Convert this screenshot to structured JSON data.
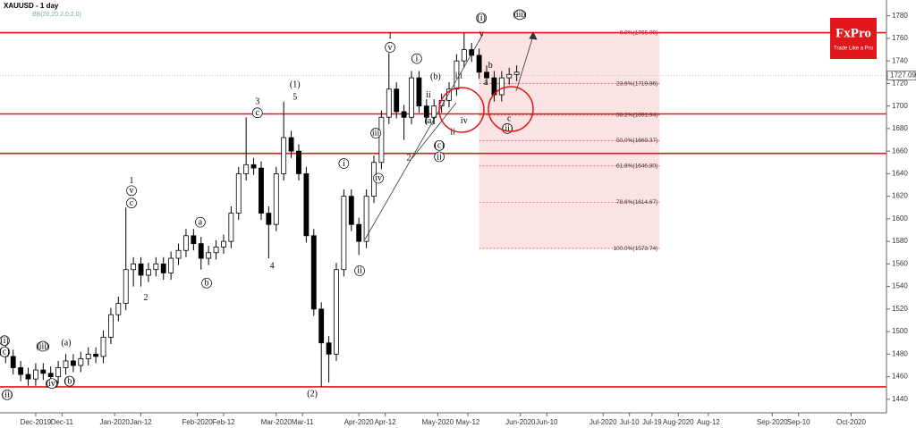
{
  "chart_data": {
    "type": "candlestick",
    "title": "XAUUSD - 1 day",
    "subtitle": "BB(20,20,2,0,2,0)",
    "x": [
      -8,
      -6,
      -4,
      -2,
      0,
      2,
      4,
      6,
      8,
      10,
      12,
      14,
      16,
      18,
      20,
      22,
      24,
      26,
      28,
      30,
      32,
      34,
      36,
      38,
      40,
      42,
      44,
      46,
      48,
      50,
      52,
      54,
      56,
      58,
      60,
      62,
      64,
      66,
      68,
      70,
      72,
      74,
      76,
      78,
      80,
      82,
      84,
      86,
      88,
      90,
      92,
      94,
      96,
      98,
      100,
      102,
      104,
      106,
      108,
      110,
      112,
      114,
      116,
      118,
      120,
      122,
      124,
      126,
      128
    ],
    "open": [
      1485,
      1478,
      1468,
      1462,
      1458,
      1466,
      1463,
      1460,
      1468,
      1474,
      1470,
      1476,
      1480,
      1478,
      1495,
      1515,
      1525,
      1555,
      1560,
      1550,
      1555,
      1560,
      1552,
      1565,
      1572,
      1585,
      1578,
      1565,
      1570,
      1575,
      1580,
      1605,
      1640,
      1648,
      1645,
      1605,
      1595,
      1640,
      1672,
      1660,
      1640,
      1585,
      1520,
      1490,
      1480,
      1555,
      1620,
      1595,
      1580,
      1620,
      1650,
      1690,
      1715,
      1695,
      1690,
      1725,
      1700,
      1690,
      1700,
      1705,
      1715,
      1740,
      1750,
      1745,
      1730,
      1725,
      1710,
      1725,
      1728
    ],
    "high": [
      1491,
      1484,
      1474,
      1468,
      1472,
      1472,
      1469,
      1474,
      1480,
      1480,
      1482,
      1486,
      1486,
      1501,
      1521,
      1531,
      1610,
      1566,
      1566,
      1561,
      1566,
      1566,
      1571,
      1578,
      1591,
      1591,
      1584,
      1576,
      1581,
      1586,
      1611,
      1646,
      1690,
      1654,
      1651,
      1611,
      1646,
      1704,
      1678,
      1666,
      1646,
      1591,
      1526,
      1496,
      1561,
      1626,
      1626,
      1601,
      1626,
      1656,
      1696,
      1747,
      1721,
      1701,
      1731,
      1731,
      1706,
      1706,
      1711,
      1721,
      1746,
      1765,
      1756,
      1751,
      1736,
      1731,
      1731,
      1734,
      1736
    ],
    "low": [
      1472,
      1462,
      1456,
      1452,
      1452,
      1457,
      1454,
      1454,
      1462,
      1464,
      1464,
      1470,
      1472,
      1472,
      1489,
      1509,
      1519,
      1540,
      1540,
      1544,
      1549,
      1546,
      1546,
      1559,
      1566,
      1572,
      1555,
      1559,
      1564,
      1569,
      1574,
      1599,
      1634,
      1639,
      1599,
      1565,
      1589,
      1634,
      1654,
      1634,
      1579,
      1514,
      1451,
      1455,
      1474,
      1549,
      1589,
      1568,
      1574,
      1614,
      1644,
      1684,
      1689,
      1670,
      1684,
      1694,
      1684,
      1684,
      1694,
      1699,
      1709,
      1734,
      1739,
      1724,
      1719,
      1704,
      1704,
      1719,
      1722
    ],
    "close": [
      1478,
      1468,
      1462,
      1458,
      1466,
      1463,
      1460,
      1468,
      1474,
      1470,
      1476,
      1480,
      1478,
      1495,
      1515,
      1525,
      1555,
      1560,
      1550,
      1555,
      1560,
      1552,
      1565,
      1572,
      1585,
      1578,
      1565,
      1570,
      1575,
      1580,
      1605,
      1640,
      1648,
      1645,
      1605,
      1595,
      1640,
      1672,
      1660,
      1640,
      1585,
      1520,
      1490,
      1480,
      1555,
      1620,
      1595,
      1580,
      1620,
      1650,
      1690,
      1715,
      1695,
      1690,
      1725,
      1700,
      1690,
      1700,
      1705,
      1715,
      1740,
      1750,
      1745,
      1730,
      1725,
      1710,
      1725,
      1728,
      1730
    ],
    "xlim": [
      -9.5,
      226.4
    ],
    "ylim": [
      1428,
      1794
    ],
    "xticks": [
      {
        "value": 0,
        "label": "Dec-2019"
      },
      {
        "value": 7,
        "label": "Dec-11"
      },
      {
        "value": 21,
        "label": "Jan-2020"
      },
      {
        "value": 28,
        "label": "Jan-12"
      },
      {
        "value": 43,
        "label": "Feb-2020"
      },
      {
        "value": 50,
        "label": "Feb-12"
      },
      {
        "value": 64,
        "label": "Mar-2020"
      },
      {
        "value": 71,
        "label": "Mar-11"
      },
      {
        "value": 86,
        "label": "Apr-2020"
      },
      {
        "value": 93,
        "label": "Apr-12"
      },
      {
        "value": 107,
        "label": "May-2020"
      },
      {
        "value": 115,
        "label": "May-12"
      },
      {
        "value": 129,
        "label": "Jun-2020"
      },
      {
        "value": 136,
        "label": "Jun-10"
      },
      {
        "value": 151,
        "label": "Jul-2020"
      },
      {
        "value": 158,
        "label": "Jul-10"
      },
      {
        "value": 164,
        "label": "Jul-19"
      },
      {
        "value": 171,
        "label": "Aug-2020"
      },
      {
        "value": 179,
        "label": "Aug-12"
      },
      {
        "value": 196,
        "label": "Sep-2020"
      },
      {
        "value": 203,
        "label": "Sep-10"
      },
      {
        "value": 217,
        "label": "Oct-2020"
      }
    ],
    "yticks": [
      1440,
      1460,
      1480,
      1500,
      1520,
      1540,
      1560,
      1580,
      1600,
      1620,
      1640,
      1660,
      1680,
      1700,
      1720,
      1740,
      1760,
      1780
    ],
    "hlines": [
      1765,
      1693,
      1658,
      1451
    ],
    "hline_color": "#e0181c",
    "last_price": 1727.09,
    "fib": {
      "x": [
        118,
        166
      ],
      "color": "#e0181c",
      "levels": [
        {
          "value": 1765,
          "label": "0.0%(1765.00)"
        },
        {
          "value": 1719.86,
          "label": "23.6%(1719.86)"
        },
        {
          "value": 1691.94,
          "label": "38.2%(1691.94)"
        },
        {
          "value": 1669.37,
          "label": "50.0%(1669.37)"
        },
        {
          "value": 1646.8,
          "label": "61.8%(1646.80)"
        },
        {
          "value": 1614.67,
          "label": "78.6%(1614.67)"
        },
        {
          "value": 1573.74,
          "label": "100.0%(1573.74)"
        }
      ]
    },
    "annotations": [
      {
        "text": "1",
        "x": 25.5,
        "y": 1634
      },
      {
        "text": "v",
        "x": 25.5,
        "y": 1625,
        "circled": true
      },
      {
        "text": "c",
        "x": 25.5,
        "y": 1614,
        "circled": true
      },
      {
        "text": "2",
        "x": 29.3,
        "y": 1530
      },
      {
        "text": "a",
        "x": 43.8,
        "y": 1597,
        "circled": true
      },
      {
        "text": "b",
        "x": 45.5,
        "y": 1543,
        "circled": true
      },
      {
        "text": "3",
        "x": 59,
        "y": 1704
      },
      {
        "text": "c",
        "x": 59,
        "y": 1694,
        "circled": true
      },
      {
        "text": "4",
        "x": 62.9,
        "y": 1558
      },
      {
        "text": "(1)",
        "x": 69,
        "y": 1719
      },
      {
        "text": "5",
        "x": 69,
        "y": 1708
      },
      {
        "text": "(2)",
        "x": 73.6,
        "y": 1445
      },
      {
        "text": "i",
        "x": 82,
        "y": 1649,
        "circled": true
      },
      {
        "text": "ii",
        "x": 86.2,
        "y": 1554,
        "circled": true
      },
      {
        "text": "iii",
        "x": 90.5,
        "y": 1676,
        "circled": true
      },
      {
        "text": "iv",
        "x": 91.2,
        "y": 1636,
        "circled": true
      },
      {
        "text": "1",
        "x": 94.3,
        "y": 1762
      },
      {
        "text": "v",
        "x": 94.3,
        "y": 1752,
        "circled": true
      },
      {
        "text": "2",
        "x": 99.3,
        "y": 1654
      },
      {
        "text": "i",
        "x": 101.4,
        "y": 1742,
        "circled": true
      },
      {
        "text": "ii",
        "x": 104.5,
        "y": 1710
      },
      {
        "text": "(b)",
        "x": 106.4,
        "y": 1726
      },
      {
        "text": "(a)",
        "x": 104.8,
        "y": 1687
      },
      {
        "text": "(c)",
        "x": 107.4,
        "y": 1665,
        "circled": true
      },
      {
        "text": "ii",
        "x": 107.4,
        "y": 1655,
        "circled": true
      },
      {
        "text": "iii",
        "x": 112.6,
        "y": 1727
      },
      {
        "text": "ii",
        "x": 111,
        "y": 1677
      },
      {
        "text": "iv",
        "x": 114,
        "y": 1687
      },
      {
        "text": "(i)",
        "x": 118.6,
        "y": 1778,
        "circled": true
      },
      {
        "text": "v",
        "x": 118.6,
        "y": 1764
      },
      {
        "text": "b",
        "x": 121,
        "y": 1736
      },
      {
        "text": "a",
        "x": 119.8,
        "y": 1721
      },
      {
        "text": "c",
        "x": 126,
        "y": 1689
      },
      {
        "text": "(ii)",
        "x": 125.5,
        "y": 1680,
        "circled": true
      },
      {
        "text": "(iii)",
        "x": 128.8,
        "y": 1781,
        "circled": true
      },
      {
        "text": "(i)",
        "x": -8.3,
        "y": 1492,
        "circled": true
      },
      {
        "text": "(c)",
        "x": -8.3,
        "y": 1482,
        "circled": true
      },
      {
        "text": "(ii)",
        "x": -7.6,
        "y": 1444,
        "circled": true
      },
      {
        "text": "(iii)",
        "x": 1.9,
        "y": 1487,
        "circled": true
      },
      {
        "text": "(iv)",
        "x": 4.3,
        "y": 1454,
        "circled": true
      },
      {
        "text": "(a)",
        "x": 8.1,
        "y": 1490
      },
      {
        "text": "(b)",
        "x": 9,
        "y": 1456,
        "circled": true
      }
    ]
  },
  "logo": {
    "name": "FxPro",
    "tagline": "Trade Like a Pro"
  }
}
